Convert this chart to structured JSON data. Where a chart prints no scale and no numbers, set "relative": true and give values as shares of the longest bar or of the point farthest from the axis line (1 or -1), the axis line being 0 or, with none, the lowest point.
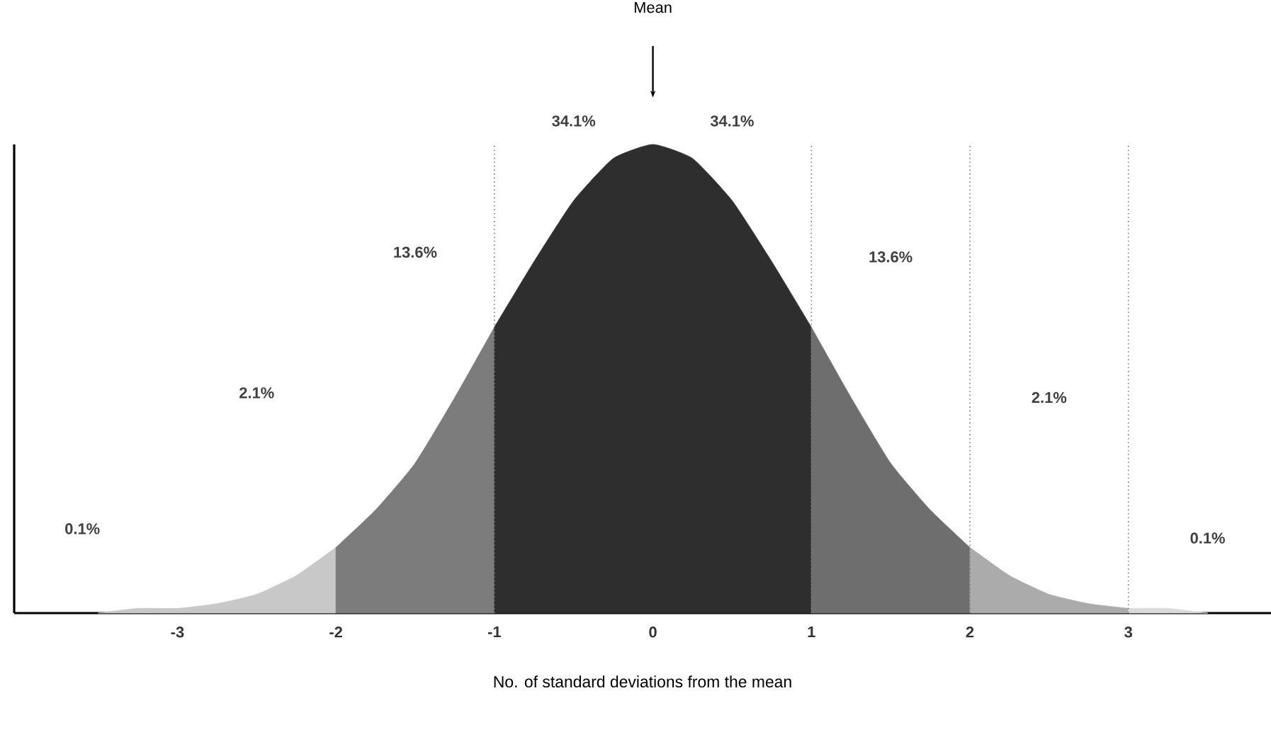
{
  "chart_data": {
    "type": "area",
    "relative": true,
    "xlabel": "No. of standard deviations from the mean",
    "xlim": [
      -4.03,
      3.9
    ],
    "xticks": [
      -3,
      -2,
      -1,
      0,
      1,
      2,
      3
    ],
    "grid": false,
    "series": [
      {
        "color": "#c8c8c8",
        "x": [
          -3.5,
          -3.25,
          -3,
          -2.75,
          -2.5,
          -2.25,
          -2
        ],
        "values": [
          0,
          0.01,
          0.01,
          0.02,
          0.04,
          0.08,
          0.14
        ]
      },
      {
        "color": "#7c7c7c",
        "x": [
          -2,
          -1.75,
          -1.5,
          -1.25,
          -1
        ],
        "values": [
          0.14,
          0.22,
          0.32,
          0.46,
          0.61
        ]
      },
      {
        "color": "#2e2e2e",
        "x": [
          -1,
          -0.75,
          -0.5,
          -0.25,
          0,
          0.25,
          0.5,
          0.75,
          1
        ],
        "values": [
          0.61,
          0.75,
          0.88,
          0.97,
          1,
          0.97,
          0.88,
          0.75,
          0.61
        ]
      },
      {
        "color": "#6e6e6e",
        "x": [
          1,
          1.25,
          1.5,
          1.75,
          2
        ],
        "values": [
          0.61,
          0.46,
          0.32,
          0.22,
          0.14
        ]
      },
      {
        "color": "#ababab",
        "x": [
          2,
          2.25,
          2.5,
          2.75,
          3
        ],
        "values": [
          0.14,
          0.08,
          0.04,
          0.02,
          0.01
        ]
      },
      {
        "color": "#dadada",
        "x": [
          3,
          3.25,
          3.5
        ],
        "values": [
          0.01,
          0.01,
          0
        ]
      }
    ],
    "ref_lines": [
      {
        "axis": "x",
        "value": -1,
        "color": "#777777",
        "line_style": "dotted"
      },
      {
        "axis": "x",
        "value": 1,
        "color": "#777777",
        "line_style": "dotted"
      },
      {
        "axis": "x",
        "value": 2,
        "color": "#777777",
        "line_style": "dotted"
      },
      {
        "axis": "x",
        "value": 3,
        "color": "#777777",
        "line_style": "dotted"
      }
    ],
    "annotations": [
      "Mean",
      "0.1%",
      "2.1%",
      "13.6%",
      "34.1%",
      "34.1%",
      "13.6%",
      "2.1%",
      "0.1%"
    ]
  }
}
